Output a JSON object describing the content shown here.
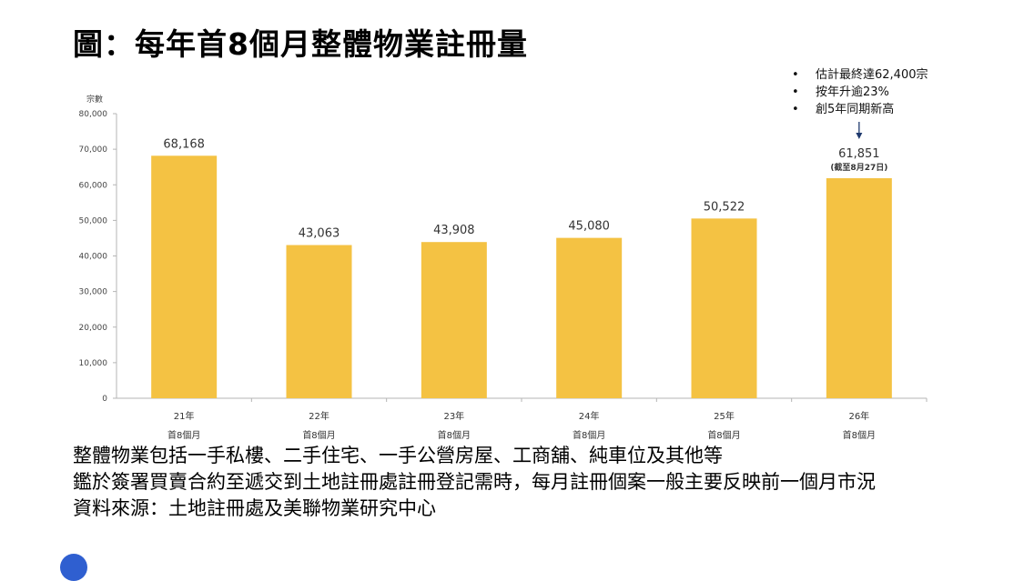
{
  "title": "圖：每年首8個月整體物業註冊量",
  "chart_data": {
    "type": "bar",
    "ylabel": "宗數",
    "ylim": [
      0,
      80000
    ],
    "yticks": [
      "0",
      "10,000",
      "20,000",
      "30,000",
      "40,000",
      "50,000",
      "60,000",
      "70,000",
      "80,000"
    ],
    "ytick_values": [
      0,
      10000,
      20000,
      30000,
      40000,
      50000,
      60000,
      70000,
      80000
    ],
    "categories": [
      "21年",
      "22年",
      "23年",
      "24年",
      "25年",
      "26年"
    ],
    "category_sublabels": [
      "首8個月",
      "首8個月",
      "首8個月",
      "首8個月",
      "首8個月",
      "首8個月"
    ],
    "values": [
      68168,
      43063,
      43908,
      45080,
      50522,
      61851
    ],
    "value_labels": [
      "68,168",
      "43,063",
      "43,908",
      "45,080",
      "50,522",
      "61,851"
    ],
    "bar_color": "#F4C243",
    "grid": false,
    "annotation_note": "(截至8月27日)",
    "annotation_bullets": [
      "估計最終達62,400宗",
      "按年升逾23%",
      "創5年同期新高"
    ]
  },
  "footer": {
    "line1": "整體物業包括一手私樓、二手住宅、一手公營房屋、工商舖、純車位及其他等",
    "line2": "鑑於簽署買賣合約至遞交到土地註冊處註冊登記需時，每月註冊個案一般主要反映前一個月市況",
    "line3": "資料來源：土地註冊處及美聯物業研究中心"
  }
}
